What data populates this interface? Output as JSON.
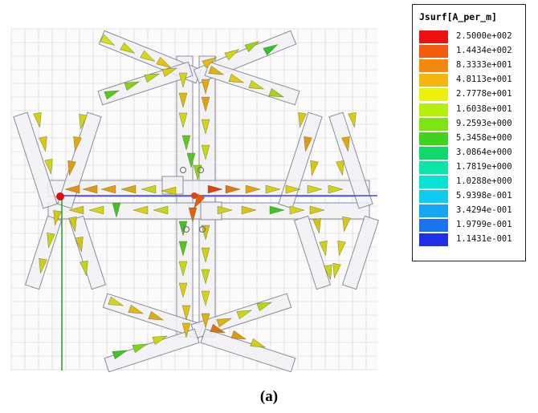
{
  "legend": {
    "title": "Jsurf[A_per_m]",
    "entries": [
      {
        "label": "2.5000e+002",
        "color": "#ee1111"
      },
      {
        "label": "1.4434e+002",
        "color": "#f25a0c"
      },
      {
        "label": "8.3333e+001",
        "color": "#f5870c"
      },
      {
        "label": "4.8113e+001",
        "color": "#f6b40e"
      },
      {
        "label": "2.7778e+001",
        "color": "#eef20a"
      },
      {
        "label": "1.6038e+001",
        "color": "#b4ef10"
      },
      {
        "label": "9.2593e+000",
        "color": "#7ee514"
      },
      {
        "label": "5.3458e+000",
        "color": "#3fd21e"
      },
      {
        "label": "3.0864e+000",
        "color": "#10d96b"
      },
      {
        "label": "1.7819e+000",
        "color": "#0ae6a6"
      },
      {
        "label": "1.0288e+000",
        "color": "#09e3d4"
      },
      {
        "label": "5.9398e-001",
        "color": "#0ecbf2"
      },
      {
        "label": "3.4294e-001",
        "color": "#16a6f4"
      },
      {
        "label": "1.9799e-001",
        "color": "#1a74f0"
      },
      {
        "label": "1.1431e-001",
        "color": "#2030e8"
      }
    ]
  },
  "caption": "(a)",
  "colors": {
    "grid": "#dcdcdc",
    "antenna_fill": "#f1f1f4",
    "antenna_edge": "#8c8c9c",
    "x_axis": "#4848d8",
    "y_axis": "#2aa82a",
    "origin_marker": "#dd1010"
  }
}
